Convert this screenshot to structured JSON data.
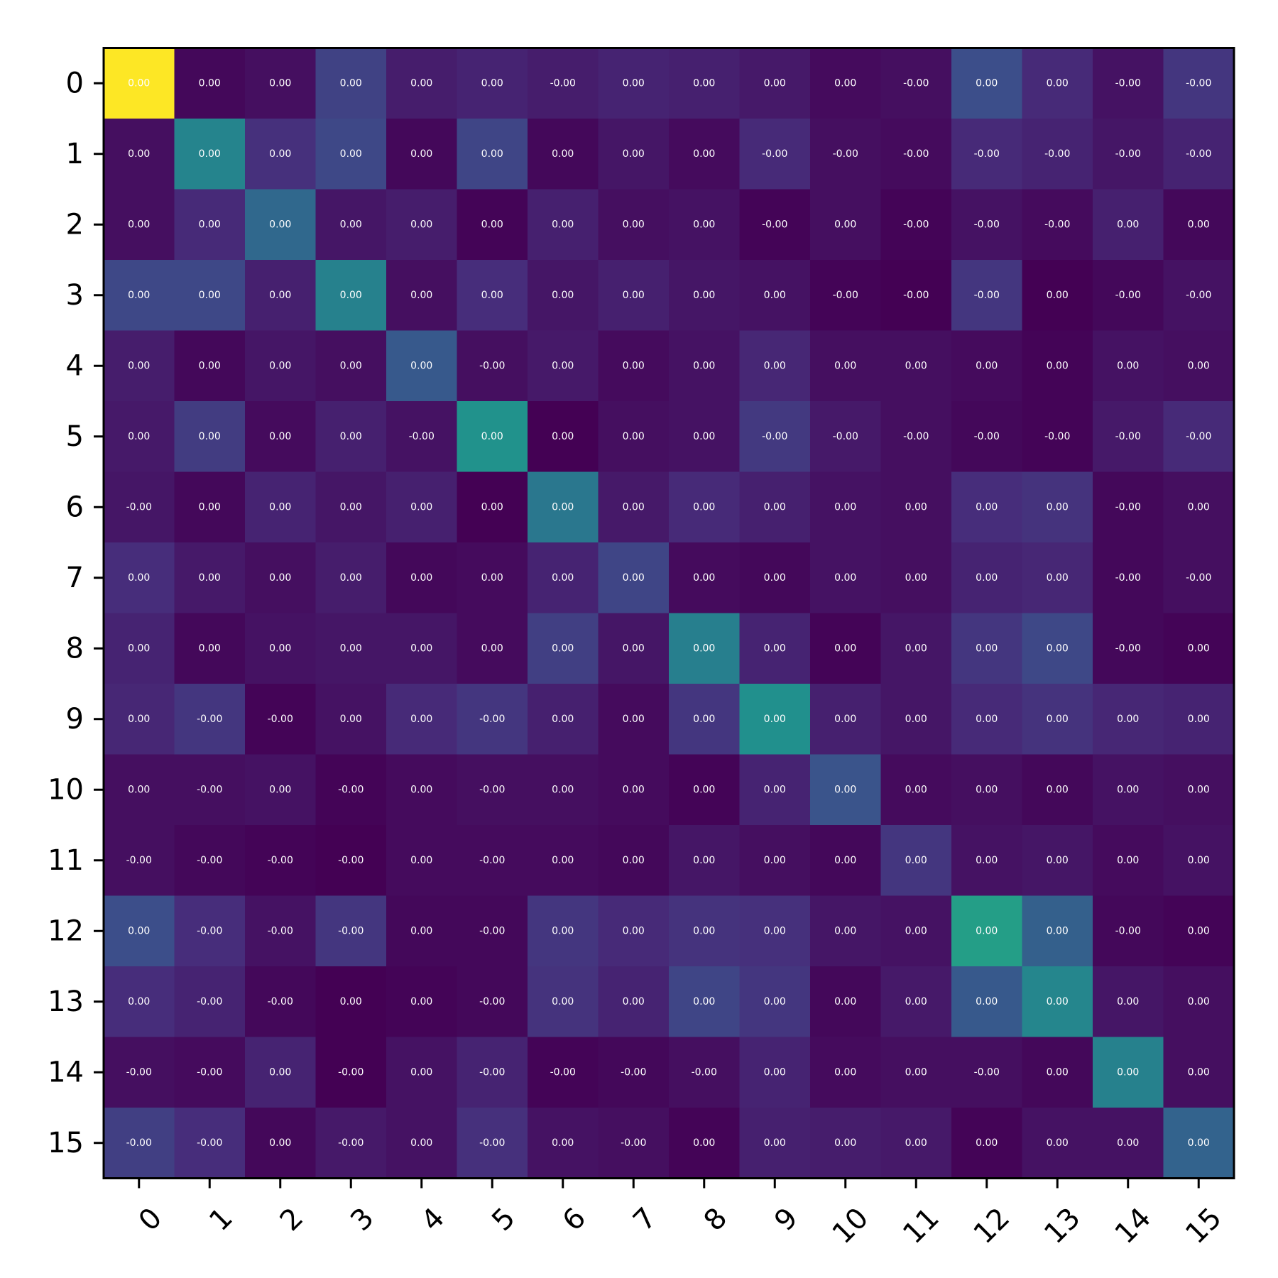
{
  "chart_data": {
    "type": "heatmap",
    "title": "",
    "xlabel": "",
    "ylabel": "",
    "colormap": "viridis",
    "x_ticks": [
      "0",
      "1",
      "2",
      "3",
      "4",
      "5",
      "6",
      "7",
      "8",
      "9",
      "10",
      "11",
      "12",
      "13",
      "14",
      "15"
    ],
    "y_ticks": [
      "0",
      "1",
      "2",
      "3",
      "4",
      "5",
      "6",
      "7",
      "8",
      "9",
      "10",
      "11",
      "12",
      "13",
      "14",
      "15"
    ],
    "labels": [
      [
        "0.00",
        "0.00",
        "0.00",
        "0.00",
        "0.00",
        "0.00",
        "-0.00",
        "0.00",
        "0.00",
        "0.00",
        "0.00",
        "-0.00",
        "0.00",
        "0.00",
        "-0.00",
        "-0.00"
      ],
      [
        "0.00",
        "0.00",
        "0.00",
        "0.00",
        "0.00",
        "0.00",
        "0.00",
        "0.00",
        "0.00",
        "-0.00",
        "-0.00",
        "-0.00",
        "-0.00",
        "-0.00",
        "-0.00",
        "-0.00"
      ],
      [
        "0.00",
        "0.00",
        "0.00",
        "0.00",
        "0.00",
        "0.00",
        "0.00",
        "0.00",
        "0.00",
        "-0.00",
        "0.00",
        "-0.00",
        "-0.00",
        "-0.00",
        "0.00",
        "0.00"
      ],
      [
        "0.00",
        "0.00",
        "0.00",
        "0.00",
        "0.00",
        "0.00",
        "0.00",
        "0.00",
        "0.00",
        "0.00",
        "-0.00",
        "-0.00",
        "-0.00",
        "0.00",
        "-0.00",
        "-0.00"
      ],
      [
        "0.00",
        "0.00",
        "0.00",
        "0.00",
        "0.00",
        "-0.00",
        "0.00",
        "0.00",
        "0.00",
        "0.00",
        "0.00",
        "0.00",
        "0.00",
        "0.00",
        "0.00",
        "0.00"
      ],
      [
        "0.00",
        "0.00",
        "0.00",
        "0.00",
        "-0.00",
        "0.00",
        "0.00",
        "0.00",
        "0.00",
        "-0.00",
        "-0.00",
        "-0.00",
        "-0.00",
        "-0.00",
        "-0.00",
        "-0.00"
      ],
      [
        "-0.00",
        "0.00",
        "0.00",
        "0.00",
        "0.00",
        "0.00",
        "0.00",
        "0.00",
        "0.00",
        "0.00",
        "0.00",
        "0.00",
        "0.00",
        "0.00",
        "-0.00",
        "0.00"
      ],
      [
        "0.00",
        "0.00",
        "0.00",
        "0.00",
        "0.00",
        "0.00",
        "0.00",
        "0.00",
        "0.00",
        "0.00",
        "0.00",
        "0.00",
        "0.00",
        "0.00",
        "-0.00",
        "-0.00"
      ],
      [
        "0.00",
        "0.00",
        "0.00",
        "0.00",
        "0.00",
        "0.00",
        "0.00",
        "0.00",
        "0.00",
        "0.00",
        "0.00",
        "0.00",
        "0.00",
        "0.00",
        "-0.00",
        "0.00"
      ],
      [
        "0.00",
        "-0.00",
        "-0.00",
        "0.00",
        "0.00",
        "-0.00",
        "0.00",
        "0.00",
        "0.00",
        "0.00",
        "0.00",
        "0.00",
        "0.00",
        "0.00",
        "0.00",
        "0.00"
      ],
      [
        "0.00",
        "-0.00",
        "0.00",
        "-0.00",
        "0.00",
        "-0.00",
        "0.00",
        "0.00",
        "0.00",
        "0.00",
        "0.00",
        "0.00",
        "0.00",
        "0.00",
        "0.00",
        "0.00"
      ],
      [
        "-0.00",
        "-0.00",
        "-0.00",
        "-0.00",
        "0.00",
        "-0.00",
        "0.00",
        "0.00",
        "0.00",
        "0.00",
        "0.00",
        "0.00",
        "0.00",
        "0.00",
        "0.00",
        "0.00"
      ],
      [
        "0.00",
        "-0.00",
        "-0.00",
        "-0.00",
        "0.00",
        "-0.00",
        "0.00",
        "0.00",
        "0.00",
        "0.00",
        "0.00",
        "0.00",
        "0.00",
        "0.00",
        "-0.00",
        "0.00"
      ],
      [
        "0.00",
        "-0.00",
        "-0.00",
        "0.00",
        "0.00",
        "-0.00",
        "0.00",
        "0.00",
        "0.00",
        "0.00",
        "0.00",
        "0.00",
        "0.00",
        "0.00",
        "0.00",
        "0.00"
      ],
      [
        "-0.00",
        "-0.00",
        "0.00",
        "-0.00",
        "0.00",
        "-0.00",
        "-0.00",
        "-0.00",
        "-0.00",
        "0.00",
        "0.00",
        "0.00",
        "-0.00",
        "0.00",
        "0.00",
        "0.00"
      ],
      [
        "-0.00",
        "-0.00",
        "0.00",
        "-0.00",
        "0.00",
        "-0.00",
        "0.00",
        "-0.00",
        "0.00",
        "0.00",
        "0.00",
        "0.00",
        "0.00",
        "0.00",
        "0.00",
        "0.00"
      ]
    ],
    "intensity": [
      [
        1.0,
        0.02,
        0.04,
        0.2,
        0.08,
        0.1,
        0.08,
        0.1,
        0.09,
        0.07,
        0.03,
        0.04,
        0.24,
        0.12,
        0.05,
        0.16
      ],
      [
        0.04,
        0.45,
        0.14,
        0.22,
        0.02,
        0.21,
        0.02,
        0.06,
        0.03,
        0.12,
        0.04,
        0.03,
        0.12,
        0.1,
        0.06,
        0.1
      ],
      [
        0.04,
        0.12,
        0.34,
        0.06,
        0.08,
        0.01,
        0.09,
        0.04,
        0.05,
        0.01,
        0.04,
        0.01,
        0.05,
        0.03,
        0.09,
        0.02
      ],
      [
        0.22,
        0.22,
        0.09,
        0.44,
        0.04,
        0.13,
        0.06,
        0.09,
        0.06,
        0.05,
        0.01,
        0.0,
        0.16,
        0.0,
        0.02,
        0.05
      ],
      [
        0.08,
        0.02,
        0.06,
        0.04,
        0.28,
        0.04,
        0.07,
        0.03,
        0.05,
        0.11,
        0.04,
        0.04,
        0.03,
        0.01,
        0.05,
        0.04
      ],
      [
        0.07,
        0.18,
        0.03,
        0.09,
        0.05,
        0.51,
        0.0,
        0.04,
        0.05,
        0.17,
        0.07,
        0.04,
        0.02,
        0.01,
        0.07,
        0.12
      ],
      [
        0.06,
        0.02,
        0.1,
        0.06,
        0.09,
        0.0,
        0.4,
        0.07,
        0.12,
        0.09,
        0.05,
        0.04,
        0.13,
        0.15,
        0.02,
        0.04
      ],
      [
        0.13,
        0.07,
        0.04,
        0.08,
        0.02,
        0.03,
        0.1,
        0.21,
        0.03,
        0.02,
        0.05,
        0.04,
        0.1,
        0.11,
        0.02,
        0.04
      ],
      [
        0.1,
        0.02,
        0.05,
        0.06,
        0.06,
        0.03,
        0.19,
        0.06,
        0.43,
        0.1,
        0.01,
        0.06,
        0.16,
        0.22,
        0.02,
        0.01
      ],
      [
        0.11,
        0.16,
        0.01,
        0.05,
        0.12,
        0.16,
        0.09,
        0.03,
        0.16,
        0.5,
        0.09,
        0.06,
        0.12,
        0.15,
        0.11,
        0.1
      ],
      [
        0.04,
        0.04,
        0.05,
        0.01,
        0.03,
        0.04,
        0.04,
        0.03,
        0.01,
        0.1,
        0.26,
        0.03,
        0.04,
        0.02,
        0.05,
        0.04
      ],
      [
        0.04,
        0.02,
        0.01,
        0.0,
        0.03,
        0.03,
        0.03,
        0.02,
        0.06,
        0.04,
        0.02,
        0.16,
        0.05,
        0.06,
        0.03,
        0.05
      ],
      [
        0.24,
        0.13,
        0.05,
        0.16,
        0.02,
        0.02,
        0.16,
        0.12,
        0.15,
        0.14,
        0.06,
        0.05,
        0.56,
        0.31,
        0.02,
        0.01
      ],
      [
        0.13,
        0.1,
        0.02,
        0.0,
        0.01,
        0.02,
        0.15,
        0.1,
        0.21,
        0.16,
        0.02,
        0.07,
        0.28,
        0.46,
        0.06,
        0.04
      ],
      [
        0.04,
        0.03,
        0.1,
        0.0,
        0.05,
        0.1,
        0.01,
        0.02,
        0.04,
        0.1,
        0.03,
        0.04,
        0.04,
        0.02,
        0.44,
        0.04
      ],
      [
        0.19,
        0.13,
        0.02,
        0.07,
        0.05,
        0.14,
        0.05,
        0.04,
        0.01,
        0.09,
        0.08,
        0.07,
        0.01,
        0.05,
        0.05,
        0.32
      ]
    ],
    "grid": false,
    "legend": "none"
  }
}
